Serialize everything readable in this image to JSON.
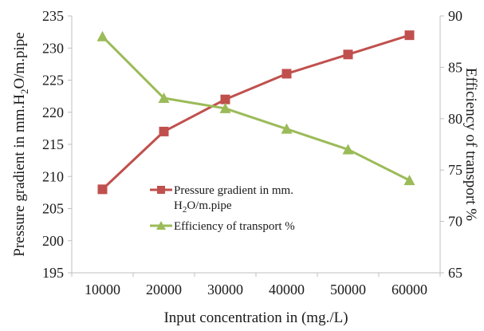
{
  "chart_data": {
    "type": "line",
    "x": [
      10000,
      20000,
      30000,
      40000,
      50000,
      60000
    ],
    "xlabel": "Input concentration in (mg./L)",
    "ylabel_left": "Pressure gradient in mm.H₂O/m.pipe",
    "ylabel_right": "Efficiency of transport %",
    "ylim_left": [
      195,
      235
    ],
    "ylim_right": [
      65,
      90
    ],
    "yticks_left": [
      195,
      200,
      205,
      210,
      215,
      220,
      225,
      230,
      235
    ],
    "yticks_right": [
      65,
      70,
      75,
      80,
      85,
      90
    ],
    "grid": false,
    "legend_position": "center",
    "series": [
      {
        "name": "Pressure gradient in mm. H₂O/m.pipe",
        "axis": "left",
        "color": "#c0504d",
        "marker": "square",
        "values": [
          208,
          217,
          222,
          226,
          229,
          232
        ]
      },
      {
        "name": "Efficiency of transport %",
        "axis": "right",
        "color": "#9bbb59",
        "marker": "triangle",
        "values": [
          88,
          82,
          81,
          79,
          77,
          74
        ]
      }
    ]
  },
  "legend": {
    "pressure_line1": "Pressure gradient in mm.",
    "pressure_line2_prefix": "H",
    "pressure_line2_sub": "2",
    "pressure_line2_suffix": "O/m.pipe",
    "efficiency": "Efficiency of transport %"
  },
  "axis_titles": {
    "left_prefix": "Pressure gradient in mm.H",
    "left_sub": "2",
    "left_suffix": "O/m.pipe",
    "right": "Efficiency of transport %",
    "bottom": "Input concentration in (mg./L)"
  }
}
